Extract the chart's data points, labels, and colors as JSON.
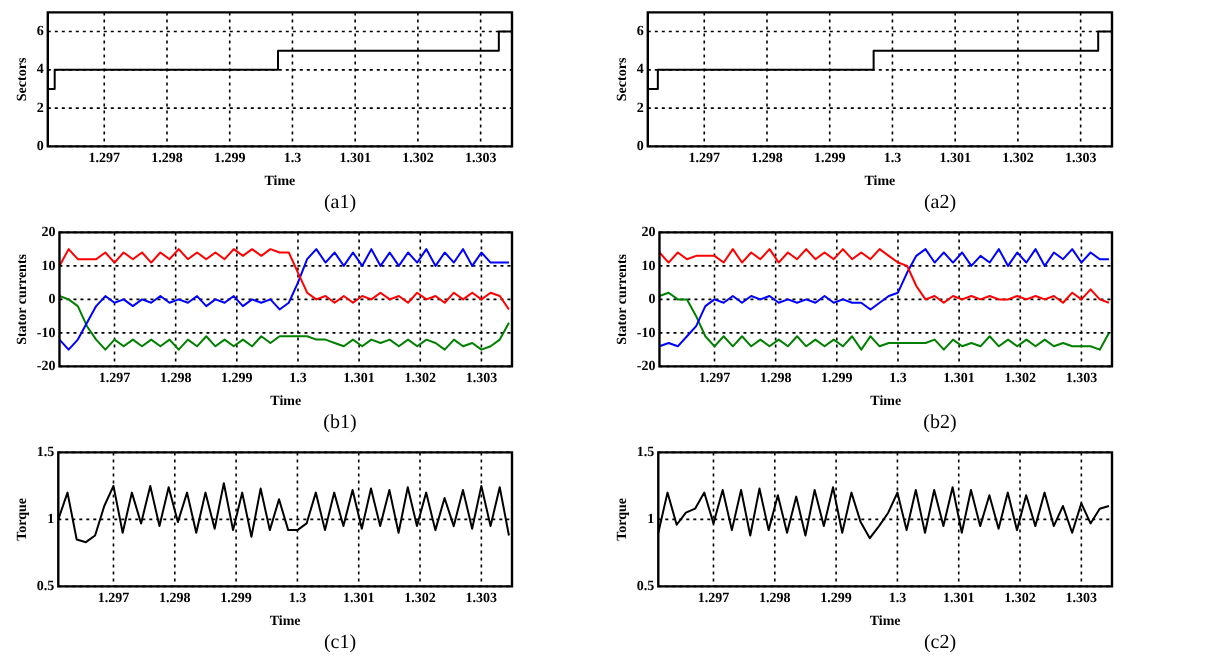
{
  "chart_data": [
    {
      "type": "step",
      "xlabel": "Time",
      "ylabel": "Sectors",
      "annotations": [
        "(a1)"
      ],
      "xlim": [
        1.2961,
        1.3035
      ],
      "xticks": [
        1.297,
        1.298,
        1.299,
        1.3,
        1.301,
        1.302,
        1.303
      ],
      "ylim": [
        0,
        7
      ],
      "yticks": [
        0,
        2,
        4,
        6
      ],
      "grid": true,
      "x": [
        1.2961,
        1.29621,
        1.29977,
        1.30329,
        1.3035
      ],
      "series": [
        {
          "color": "#000000",
          "values": [
            3,
            4,
            5,
            6,
            6
          ]
        }
      ]
    },
    {
      "type": "step",
      "xlabel": "Time",
      "ylabel": "Sectors",
      "annotations": [
        "(a2)"
      ],
      "xlim": [
        1.2961,
        1.3035
      ],
      "xticks": [
        1.297,
        1.298,
        1.299,
        1.3,
        1.301,
        1.302,
        1.303
      ],
      "ylim": [
        0,
        7
      ],
      "yticks": [
        0,
        2,
        4,
        6
      ],
      "grid": true,
      "x": [
        1.2961,
        1.29626,
        1.2997,
        1.30328,
        1.3035
      ],
      "series": [
        {
          "color": "#000000",
          "values": [
            3,
            4,
            5,
            6,
            6
          ]
        }
      ]
    },
    {
      "type": "line",
      "xlabel": "Time",
      "ylabel": "Stator currents",
      "annotations": [
        "(b1)"
      ],
      "xlim": [
        1.2961,
        1.3035
      ],
      "xticks": [
        1.297,
        1.298,
        1.299,
        1.3,
        1.301,
        1.302,
        1.303
      ],
      "ylim": [
        -20,
        20
      ],
      "yticks": [
        -20,
        -10,
        0,
        10,
        20
      ],
      "grid": true,
      "x": [
        1.2961,
        1.29625,
        1.2964,
        1.29655,
        1.2967,
        1.29685,
        1.297,
        1.29715,
        1.2973,
        1.29745,
        1.2976,
        1.29775,
        1.2979,
        1.29805,
        1.2982,
        1.29835,
        1.2985,
        1.29865,
        1.2988,
        1.29895,
        1.2991,
        1.29925,
        1.2994,
        1.29955,
        1.2997,
        1.29985,
        1.3,
        1.30015,
        1.3003,
        1.30045,
        1.3006,
        1.30075,
        1.3009,
        1.30105,
        1.3012,
        1.30135,
        1.3015,
        1.30165,
        1.3018,
        1.30195,
        1.3021,
        1.30225,
        1.3024,
        1.30255,
        1.3027,
        1.30285,
        1.303,
        1.30315,
        1.3033,
        1.30345
      ],
      "series": [
        {
          "color": "#ff0000",
          "values": [
            10,
            15,
            12,
            12,
            12,
            14,
            11,
            14,
            12,
            14,
            11,
            14,
            12,
            15,
            12,
            14,
            12,
            14,
            12,
            15,
            13,
            15,
            13,
            15,
            14,
            14,
            8,
            2,
            0,
            1,
            -1,
            1,
            -1,
            1,
            0,
            2,
            0,
            1,
            -1,
            2,
            0,
            1,
            -1,
            2,
            0,
            2,
            0,
            2,
            1,
            -3
          ]
        },
        {
          "color": "#0000ff",
          "values": [
            -12,
            -15,
            -12,
            -7,
            -2,
            1,
            -1,
            0,
            -2,
            0,
            -1,
            1,
            -1,
            0,
            -1,
            1,
            -2,
            0,
            -1,
            1,
            -2,
            0,
            -1,
            0,
            -3,
            -1,
            5,
            12,
            15,
            11,
            14,
            10,
            14,
            10,
            15,
            10,
            14,
            10,
            14,
            11,
            15,
            10,
            14,
            11,
            15,
            10,
            14,
            11,
            11,
            11
          ]
        },
        {
          "color": "#008000",
          "values": [
            1,
            0,
            -2,
            -8,
            -12,
            -15,
            -12,
            -14,
            -12,
            -14,
            -12,
            -14,
            -12,
            -15,
            -12,
            -14,
            -11,
            -14,
            -12,
            -14,
            -12,
            -14,
            -11,
            -13,
            -11,
            -11,
            -11,
            -11,
            -12,
            -12,
            -13,
            -14,
            -12,
            -14,
            -12,
            -13,
            -12,
            -14,
            -12,
            -14,
            -12,
            -13,
            -15,
            -12,
            -14,
            -13,
            -15,
            -14,
            -12,
            -7
          ]
        }
      ]
    },
    {
      "type": "line",
      "xlabel": "Time",
      "ylabel": "Stator currents",
      "annotations": [
        "(b2)"
      ],
      "xlim": [
        1.2961,
        1.3035
      ],
      "xticks": [
        1.297,
        1.298,
        1.299,
        1.3,
        1.301,
        1.302,
        1.303
      ],
      "ylim": [
        -20,
        20
      ],
      "yticks": [
        -20,
        -10,
        0,
        10,
        20
      ],
      "grid": true,
      "x": [
        1.2961,
        1.29625,
        1.2964,
        1.29655,
        1.2967,
        1.29685,
        1.297,
        1.29715,
        1.2973,
        1.29745,
        1.2976,
        1.29775,
        1.2979,
        1.29805,
        1.2982,
        1.29835,
        1.2985,
        1.29865,
        1.2988,
        1.29895,
        1.2991,
        1.29925,
        1.2994,
        1.29955,
        1.2997,
        1.29985,
        1.3,
        1.30015,
        1.3003,
        1.30045,
        1.3006,
        1.30075,
        1.3009,
        1.30105,
        1.3012,
        1.30135,
        1.3015,
        1.30165,
        1.3018,
        1.30195,
        1.3021,
        1.30225,
        1.3024,
        1.30255,
        1.3027,
        1.30285,
        1.303,
        1.30315,
        1.3033,
        1.30345
      ],
      "series": [
        {
          "color": "#ff0000",
          "values": [
            14,
            11,
            14,
            12,
            13,
            13,
            13,
            11,
            15,
            11,
            14,
            12,
            15,
            11,
            14,
            12,
            15,
            12,
            14,
            12,
            15,
            12,
            14,
            12,
            15,
            13,
            11,
            10,
            4,
            0,
            1,
            -1,
            1,
            0,
            1,
            0,
            1,
            0,
            0,
            1,
            0,
            1,
            0,
            1,
            -1,
            2,
            0,
            3,
            0,
            -1
          ]
        },
        {
          "color": "#0000ff",
          "values": [
            -14,
            -13,
            -14,
            -11,
            -8,
            -2,
            0,
            -1,
            1,
            -1,
            1,
            0,
            1,
            -1,
            0,
            -1,
            0,
            -1,
            1,
            -1,
            0,
            -1,
            -1,
            -3,
            -1,
            1,
            2,
            8,
            13,
            15,
            11,
            14,
            11,
            14,
            10,
            13,
            11,
            15,
            10,
            14,
            11,
            15,
            10,
            14,
            12,
            15,
            11,
            14,
            12,
            12
          ]
        },
        {
          "color": "#008000",
          "values": [
            1,
            2,
            0,
            0,
            -5,
            -11,
            -14,
            -11,
            -14,
            -11,
            -14,
            -12,
            -14,
            -12,
            -14,
            -11,
            -14,
            -12,
            -14,
            -12,
            -14,
            -11,
            -15,
            -11,
            -14,
            -13,
            -13,
            -13,
            -13,
            -13,
            -12,
            -15,
            -12,
            -14,
            -13,
            -14,
            -11,
            -14,
            -12,
            -14,
            -12,
            -14,
            -12,
            -14,
            -13,
            -14,
            -14,
            -14,
            -15,
            -10
          ]
        }
      ]
    },
    {
      "type": "line",
      "xlabel": "Time",
      "ylabel": "Torque",
      "annotations": [
        "(c1)"
      ],
      "xlim": [
        1.2961,
        1.3035
      ],
      "xticks": [
        1.297,
        1.298,
        1.299,
        1.3,
        1.301,
        1.302,
        1.303
      ],
      "ylim": [
        0.5,
        1.5
      ],
      "yticks": [
        0.5,
        1,
        1.5
      ],
      "grid": true,
      "x": [
        1.2961,
        1.29625,
        1.2964,
        1.29655,
        1.2967,
        1.29685,
        1.297,
        1.29715,
        1.2973,
        1.29745,
        1.2976,
        1.29775,
        1.2979,
        1.29805,
        1.2982,
        1.29835,
        1.2985,
        1.29865,
        1.2988,
        1.29895,
        1.2991,
        1.29925,
        1.2994,
        1.29955,
        1.2997,
        1.29985,
        1.3,
        1.30015,
        1.3003,
        1.30045,
        1.3006,
        1.30075,
        1.3009,
        1.30105,
        1.3012,
        1.30135,
        1.3015,
        1.30165,
        1.3018,
        1.30195,
        1.3021,
        1.30225,
        1.3024,
        1.30255,
        1.3027,
        1.30285,
        1.303,
        1.30315,
        1.3033,
        1.30345
      ],
      "series": [
        {
          "color": "#000000",
          "values": [
            1.0,
            1.2,
            0.85,
            0.83,
            0.88,
            1.1,
            1.25,
            0.9,
            1.2,
            0.97,
            1.25,
            0.95,
            1.24,
            0.98,
            1.2,
            0.9,
            1.2,
            0.93,
            1.27,
            0.92,
            1.2,
            0.87,
            1.23,
            0.92,
            1.15,
            0.92,
            0.92,
            0.97,
            1.2,
            0.92,
            1.2,
            0.95,
            1.22,
            0.93,
            1.23,
            0.95,
            1.22,
            0.9,
            1.24,
            0.95,
            1.2,
            0.92,
            1.16,
            0.95,
            1.22,
            0.93,
            1.25,
            0.95,
            1.24,
            0.88
          ]
        }
      ]
    },
    {
      "type": "line",
      "xlabel": "Time",
      "ylabel": "Torque",
      "annotations": [
        "(c2)"
      ],
      "xlim": [
        1.2961,
        1.3035
      ],
      "xticks": [
        1.297,
        1.298,
        1.299,
        1.3,
        1.301,
        1.302,
        1.303
      ],
      "ylim": [
        0.5,
        1.5
      ],
      "yticks": [
        0.5,
        1,
        1.5
      ],
      "grid": true,
      "x": [
        1.2961,
        1.29625,
        1.2964,
        1.29655,
        1.2967,
        1.29685,
        1.297,
        1.29715,
        1.2973,
        1.29745,
        1.2976,
        1.29775,
        1.2979,
        1.29805,
        1.2982,
        1.29835,
        1.2985,
        1.29865,
        1.2988,
        1.29895,
        1.2991,
        1.29925,
        1.2994,
        1.29955,
        1.2997,
        1.29985,
        1.3,
        1.30015,
        1.3003,
        1.30045,
        1.3006,
        1.30075,
        1.3009,
        1.30105,
        1.3012,
        1.30135,
        1.3015,
        1.30165,
        1.3018,
        1.30195,
        1.3021,
        1.30225,
        1.3024,
        1.30255,
        1.3027,
        1.30285,
        1.303,
        1.30315,
        1.3033,
        1.30345
      ],
      "series": [
        {
          "color": "#000000",
          "values": [
            0.9,
            1.2,
            0.96,
            1.05,
            1.08,
            1.2,
            0.97,
            1.22,
            0.92,
            1.22,
            0.88,
            1.23,
            0.92,
            1.18,
            0.9,
            1.17,
            0.88,
            1.22,
            0.95,
            1.24,
            0.9,
            1.2,
            0.98,
            0.86,
            0.95,
            1.05,
            1.2,
            0.92,
            1.22,
            0.9,
            1.22,
            0.95,
            1.24,
            0.9,
            1.22,
            0.95,
            1.18,
            0.93,
            1.2,
            0.92,
            1.18,
            0.95,
            1.2,
            0.95,
            1.1,
            0.9,
            1.12,
            0.97,
            1.08,
            1.1
          ]
        }
      ]
    }
  ]
}
